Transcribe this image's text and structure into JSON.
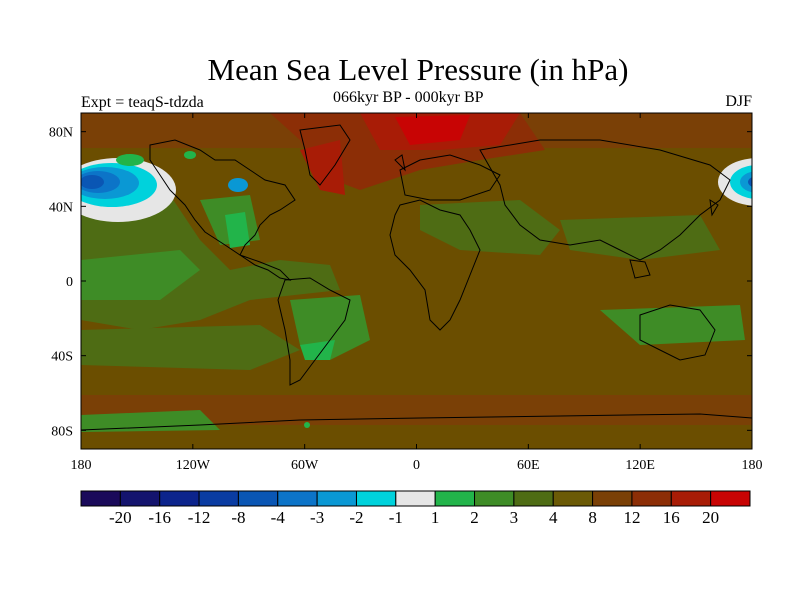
{
  "title": "Mean Sea Level Pressure (in hPa)",
  "subtitle": "066kyr BP - 000kyr BP",
  "left_label": "Expt = teaqS-tdzda",
  "right_label": "DJF",
  "colors": {
    "background_field": "#6b4e00",
    "coastline": "#000000"
  },
  "map": {
    "x_ticks": [
      "180",
      "120W",
      "60W",
      "0",
      "60E",
      "120E",
      "180"
    ],
    "y_ticks": [
      "80N",
      "40N",
      "0",
      "40S",
      "80S"
    ]
  },
  "colorbar": {
    "colors": [
      "#1a0a5a",
      "#14146e",
      "#0c248c",
      "#0a3ca2",
      "#0a56b4",
      "#0c74c8",
      "#0a98d4",
      "#00d2dc",
      "#e6e6e6",
      "#22b44a",
      "#3e8c26",
      "#4e6c14",
      "#6b5a06",
      "#7a4006",
      "#8c2e06",
      "#a81c06",
      "#c80404"
    ],
    "labels": [
      "-20",
      "-16",
      "-12",
      "-8",
      "-4",
      "-3",
      "-2",
      "-1",
      "1",
      "2",
      "3",
      "4",
      "8",
      "12",
      "16",
      "20"
    ]
  }
}
